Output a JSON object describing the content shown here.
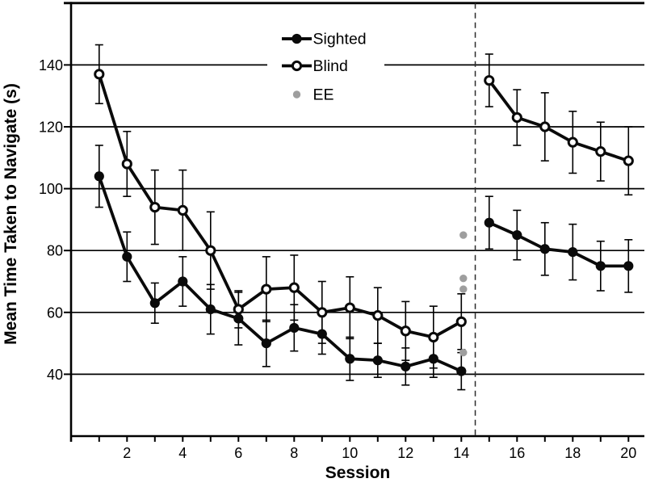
{
  "chart_data": {
    "type": "line",
    "title": "",
    "xlabel": "Session",
    "ylabel": "Mean Time Taken to Navigate (s)",
    "x": [
      1,
      2,
      3,
      4,
      5,
      6,
      7,
      8,
      9,
      10,
      11,
      12,
      13,
      14,
      15,
      16,
      17,
      18,
      19,
      20
    ],
    "x_labeled_ticks": [
      2,
      4,
      6,
      8,
      10,
      12,
      14,
      16,
      18,
      20
    ],
    "xlim": [
      0,
      20.6
    ],
    "ylim": [
      20,
      160
    ],
    "yticks": [
      40,
      60,
      80,
      100,
      120,
      140
    ],
    "grid": "horizontal",
    "legend_position": "inside-top-center",
    "divider_x": 14.5,
    "series_break_after_index": 13,
    "colors": {
      "line": "#0a0a0a",
      "axis": "#000000",
      "open_marker_fill": "#ffffff",
      "ee_dot": "#9e9e9e",
      "divider": "#2b2b2b",
      "background": "#ffffff"
    },
    "series": [
      {
        "name": "Sighted",
        "marker": "filled-circle",
        "values": [
          104,
          78,
          63,
          70,
          61,
          58,
          50,
          55,
          53,
          45,
          44.5,
          42.5,
          45,
          41,
          89,
          85,
          80.5,
          79.5,
          75,
          75
        ],
        "errors": [
          10,
          8,
          6.5,
          8,
          8,
          8.5,
          7.5,
          7.5,
          6.5,
          7,
          5.5,
          6,
          6,
          6,
          8.5,
          8,
          8.5,
          9,
          8,
          8.5
        ]
      },
      {
        "name": "Blind",
        "marker": "open-circle",
        "values": [
          137,
          108,
          94,
          93,
          80,
          61,
          67.5,
          68,
          60,
          61.5,
          59,
          54,
          52,
          57,
          135,
          123,
          120,
          115,
          112,
          109
        ],
        "errors": [
          9.5,
          10.5,
          12,
          13,
          12.5,
          6,
          10.5,
          10.5,
          10,
          10,
          9,
          9.5,
          10,
          9,
          8.5,
          9,
          11,
          10,
          9.5,
          11
        ]
      },
      {
        "name": "EE",
        "marker": "gray-dot",
        "points": [
          {
            "x": 14,
            "y": 85
          },
          {
            "x": 14,
            "y": 71
          },
          {
            "x": 14,
            "y": 67.5
          },
          {
            "x": 14,
            "y": 47
          }
        ]
      }
    ],
    "legend_items": [
      {
        "label": "Sighted",
        "marker": "filled-circle-line"
      },
      {
        "label": "Blind",
        "marker": "open-circle-line"
      },
      {
        "label": "EE",
        "marker": "gray-dot"
      }
    ]
  }
}
